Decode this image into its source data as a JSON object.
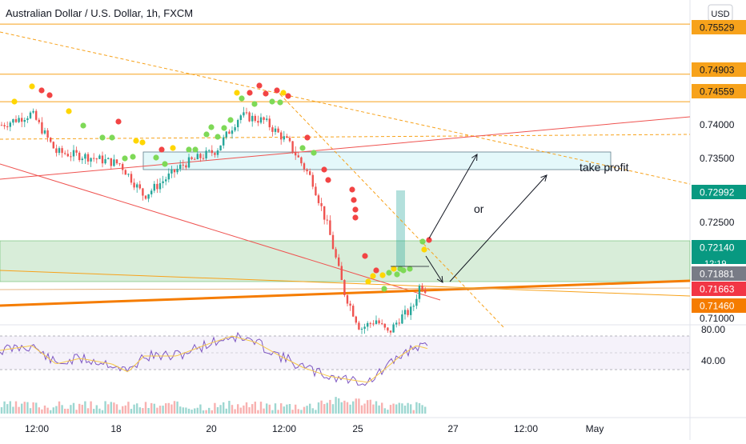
{
  "chart_data": {
    "type": "candlestick",
    "title": "Australian Dollar / U.S. Dollar, 1h, FXCM",
    "currency": "USD",
    "y_scale": "linear",
    "ylim": [
      0.7083,
      0.7583
    ],
    "y_ticks": [
      "0.74000",
      "0.73500",
      "0.72500",
      "0.71000"
    ],
    "x_ticks": [
      "12:00",
      "18",
      "20",
      "12:00",
      "25",
      "27",
      "12:00",
      "May"
    ],
    "horizontal_levels": [
      {
        "value": 0.75529,
        "label": "0.75529",
        "color": "#f7a21b"
      },
      {
        "value": 0.74903,
        "label": "0.74903",
        "color": "#f7a21b"
      },
      {
        "value": 0.74559,
        "label": "0.74559",
        "color": "#f7a21b"
      }
    ],
    "price_labels": [
      {
        "value": 0.75529,
        "label": "0.75529",
        "color": "#f7a21b",
        "text_color": "#131722"
      },
      {
        "value": 0.74903,
        "label": "0.74903",
        "color": "#f7a21b",
        "text_color": "#131722"
      },
      {
        "value": 0.74559,
        "label": "0.74559",
        "color": "#f7a21b",
        "text_color": "#131722"
      },
      {
        "value": 0.72992,
        "label": "0.72992",
        "color": "#089981",
        "text_color": "#ffffff"
      },
      {
        "value": 0.7214,
        "label": "0.72140",
        "color": "#089981",
        "text_color": "#ffffff"
      },
      {
        "value": 0.71881,
        "label": "0.71881",
        "color": "#787b86",
        "text_color": "#ffffff"
      },
      {
        "value": 0.71663,
        "label": "0.71663",
        "color": "#f23645",
        "text_color": "#ffffff"
      },
      {
        "value": 0.7146,
        "label": "0.71460",
        "color": "#f57c00",
        "text_color": "#ffffff"
      }
    ],
    "countdown_label": "12:19",
    "annotations": [
      {
        "text": "take profit"
      },
      {
        "text": "or"
      }
    ],
    "rsi_panel": {
      "ticks": [
        "80.00",
        "40.00"
      ],
      "upper_band": 70,
      "lower_band": 30
    }
  },
  "colors": {
    "up_candle": "#26a69a",
    "down_candle": "#ef5350",
    "marker_green": "#7ed957",
    "marker_yellow": "#ffd600",
    "marker_red": "#f24444",
    "resistance_orange": "#f7a21b",
    "trendline_orange": "#f57c00",
    "zone_fill": "rgba(76,175,80,0.22)",
    "tp_fill": "rgba(178,235,242,0.35)",
    "rsi_line": "#7e57c2",
    "rsi_ma": "#f7c948"
  }
}
